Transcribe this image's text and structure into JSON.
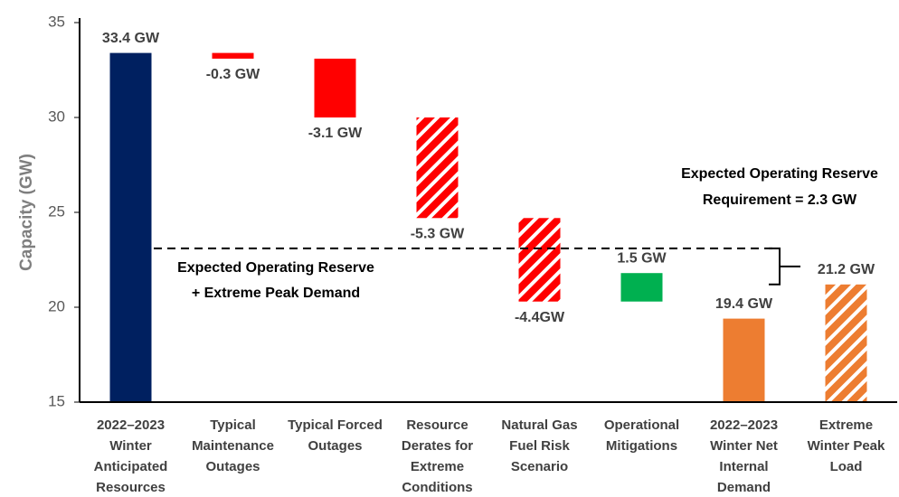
{
  "chart_data": {
    "type": "waterfall",
    "ylabel": "Capacity (GW)",
    "categories": [
      "2022–2023\nWinter\nAnticipated\nResources",
      "Typical\nMaintenance\nOutages",
      "Typical Forced\nOutages",
      "Resource\nDerates for\nExtreme\nConditions",
      "Natural Gas\nFuel Risk\nScenario",
      "Operational\nMitigations",
      "2022–2023\nWinter Net\nInternal\nDemand",
      "Extreme\nWinter Peak\nLoad"
    ],
    "values": [
      33.4,
      -0.3,
      -3.1,
      -5.3,
      -4.4,
      1.5,
      19.4,
      21.2
    ],
    "value_labels": [
      "33.4 GW",
      "-0.3 GW",
      "-3.1 GW",
      "-5.3 GW",
      "-4.4GW",
      "1.5 GW",
      "19.4 GW",
      "21.2 GW"
    ],
    "measure": [
      "absolute",
      "relative",
      "relative",
      "relative",
      "relative",
      "relative",
      "absolute",
      "absolute"
    ],
    "colors": [
      "#002060",
      "#ff0000",
      "#ff0000",
      "#ff0000",
      "#ff0000",
      "#00b050",
      "#ed7d31",
      "#ed7d31"
    ],
    "hatched": [
      false,
      false,
      false,
      true,
      true,
      false,
      false,
      true
    ],
    "ylim": [
      15,
      35
    ],
    "yticks": [
      15,
      20,
      25,
      30,
      35
    ],
    "reserve_line": 23.1,
    "annotations": [
      "Expected Operating Reserve\n+ Extreme Peak Demand",
      "Expected Operating Reserve\nRequirement = 2.3 GW"
    ]
  }
}
